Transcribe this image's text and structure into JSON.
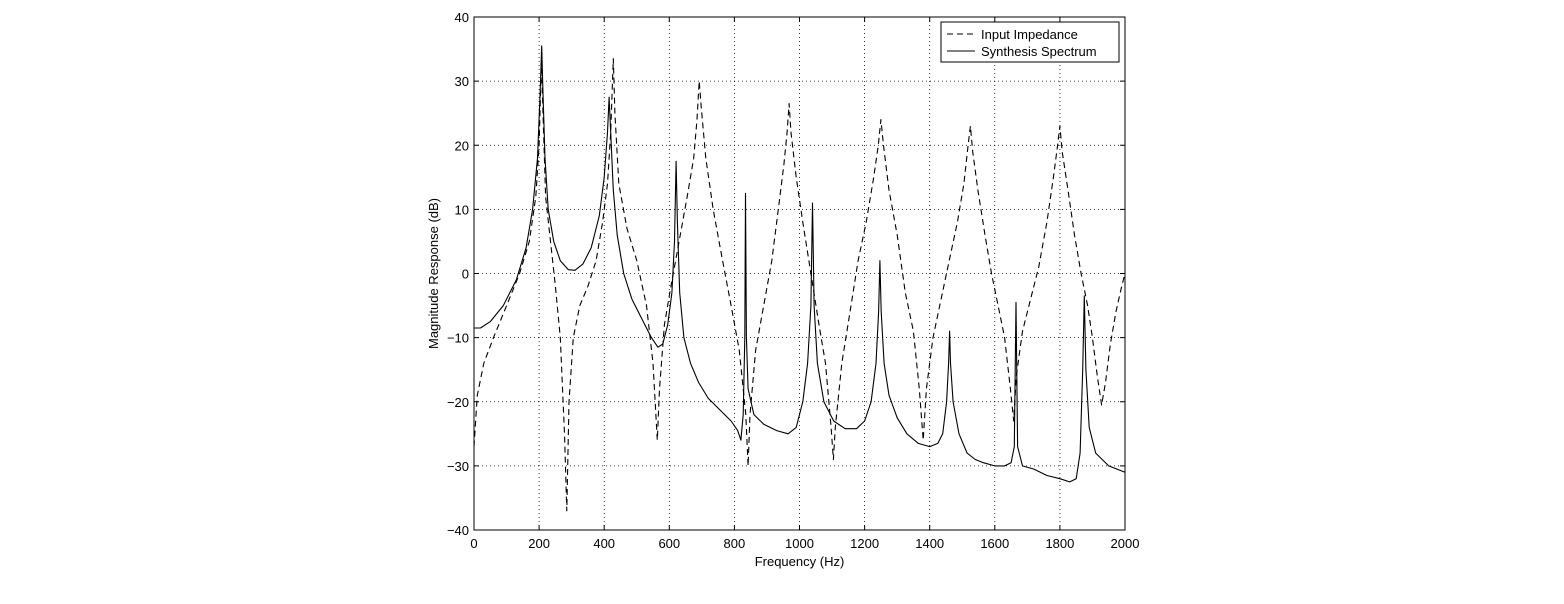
{
  "chart_data": {
    "type": "line",
    "title": "",
    "xlabel": "Frequency (Hz)",
    "ylabel": "Magnitude Response (dB)",
    "xlim": [
      0,
      2000
    ],
    "ylim": [
      -40,
      40
    ],
    "xticks": [
      0,
      200,
      400,
      600,
      800,
      1000,
      1200,
      1400,
      1600,
      1800,
      2000
    ],
    "yticks": [
      -40,
      -30,
      -20,
      -10,
      0,
      10,
      20,
      30,
      40
    ],
    "grid": true,
    "legend_position": "top-right",
    "series": [
      {
        "name": "Input Impedance",
        "style": "dashed",
        "color": "#000000",
        "points": [
          [
            0,
            -27
          ],
          [
            10,
            -19
          ],
          [
            30,
            -14
          ],
          [
            60,
            -10
          ],
          [
            100,
            -5
          ],
          [
            140,
            0
          ],
          [
            170,
            5
          ],
          [
            190,
            12
          ],
          [
            200,
            20
          ],
          [
            207,
            33
          ],
          [
            212,
            25
          ],
          [
            220,
            12
          ],
          [
            235,
            5
          ],
          [
            250,
            -2
          ],
          [
            265,
            -10
          ],
          [
            278,
            -25
          ],
          [
            285,
            -37
          ],
          [
            292,
            -20
          ],
          [
            305,
            -10
          ],
          [
            325,
            -5
          ],
          [
            350,
            -2
          ],
          [
            375,
            2
          ],
          [
            395,
            8
          ],
          [
            410,
            14
          ],
          [
            420,
            22
          ],
          [
            428,
            33.5
          ],
          [
            433,
            25
          ],
          [
            445,
            14
          ],
          [
            470,
            7
          ],
          [
            500,
            2
          ],
          [
            530,
            -5
          ],
          [
            550,
            -14
          ],
          [
            563,
            -26
          ],
          [
            570,
            -18
          ],
          [
            585,
            -8
          ],
          [
            605,
            -2
          ],
          [
            630,
            5
          ],
          [
            655,
            12
          ],
          [
            675,
            18
          ],
          [
            685,
            24
          ],
          [
            692,
            30
          ],
          [
            698,
            26
          ],
          [
            712,
            18
          ],
          [
            735,
            10
          ],
          [
            760,
            3
          ],
          [
            790,
            -5
          ],
          [
            815,
            -12
          ],
          [
            835,
            -22
          ],
          [
            842,
            -30
          ],
          [
            848,
            -22
          ],
          [
            865,
            -12
          ],
          [
            890,
            -5
          ],
          [
            915,
            2
          ],
          [
            935,
            10
          ],
          [
            952,
            17
          ],
          [
            962,
            22
          ],
          [
            968,
            26.5
          ],
          [
            974,
            22
          ],
          [
            990,
            15
          ],
          [
            1010,
            8
          ],
          [
            1035,
            0
          ],
          [
            1060,
            -8
          ],
          [
            1080,
            -14
          ],
          [
            1097,
            -24
          ],
          [
            1104,
            -29
          ],
          [
            1110,
            -24
          ],
          [
            1130,
            -14
          ],
          [
            1155,
            -6
          ],
          [
            1180,
            2
          ],
          [
            1205,
            8
          ],
          [
            1228,
            15
          ],
          [
            1242,
            20
          ],
          [
            1250,
            24
          ],
          [
            1258,
            20
          ],
          [
            1275,
            13
          ],
          [
            1300,
            6
          ],
          [
            1325,
            -3
          ],
          [
            1350,
            -9
          ],
          [
            1368,
            -18
          ],
          [
            1380,
            -26
          ],
          [
            1390,
            -18
          ],
          [
            1410,
            -10
          ],
          [
            1435,
            -4
          ],
          [
            1460,
            2
          ],
          [
            1485,
            8
          ],
          [
            1505,
            14
          ],
          [
            1518,
            20
          ],
          [
            1525,
            23
          ],
          [
            1532,
            19
          ],
          [
            1548,
            13
          ],
          [
            1570,
            6
          ],
          [
            1590,
            0
          ],
          [
            1610,
            -5
          ],
          [
            1630,
            -10
          ],
          [
            1648,
            -18
          ],
          [
            1658,
            -23
          ],
          [
            1666,
            -16
          ],
          [
            1685,
            -9
          ],
          [
            1710,
            -4
          ],
          [
            1735,
            1
          ],
          [
            1760,
            8
          ],
          [
            1780,
            15
          ],
          [
            1793,
            20
          ],
          [
            1800,
            23
          ],
          [
            1807,
            19
          ],
          [
            1825,
            13
          ],
          [
            1845,
            6
          ],
          [
            1865,
            0
          ],
          [
            1885,
            -5
          ],
          [
            1900,
            -10
          ],
          [
            1915,
            -16
          ],
          [
            1928,
            -20.5
          ],
          [
            1940,
            -17
          ],
          [
            1955,
            -11
          ],
          [
            1972,
            -6
          ],
          [
            1990,
            -2
          ],
          [
            2000,
            0
          ]
        ]
      },
      {
        "name": "Synthesis Spectrum",
        "style": "solid",
        "color": "#000000",
        "points": [
          [
            0,
            -8.5
          ],
          [
            20,
            -8.5
          ],
          [
            50,
            -7.5
          ],
          [
            90,
            -5
          ],
          [
            130,
            -1
          ],
          [
            160,
            4
          ],
          [
            180,
            10
          ],
          [
            195,
            18
          ],
          [
            203,
            28
          ],
          [
            208,
            35.5
          ],
          [
            212,
            28
          ],
          [
            218,
            18
          ],
          [
            228,
            10
          ],
          [
            245,
            5
          ],
          [
            265,
            2
          ],
          [
            290,
            0.6
          ],
          [
            310,
            0.5
          ],
          [
            335,
            1.5
          ],
          [
            360,
            4
          ],
          [
            385,
            9
          ],
          [
            400,
            15
          ],
          [
            410,
            22
          ],
          [
            415,
            27.5
          ],
          [
            420,
            22
          ],
          [
            428,
            13
          ],
          [
            440,
            6
          ],
          [
            460,
            0
          ],
          [
            485,
            -4
          ],
          [
            515,
            -7
          ],
          [
            545,
            -10
          ],
          [
            565,
            -11.5
          ],
          [
            580,
            -11
          ],
          [
            595,
            -8
          ],
          [
            608,
            -3
          ],
          [
            616,
            5
          ],
          [
            621,
            17.5
          ],
          [
            625,
            8
          ],
          [
            632,
            -3
          ],
          [
            645,
            -10
          ],
          [
            665,
            -14
          ],
          [
            690,
            -17
          ],
          [
            720,
            -19.5
          ],
          [
            760,
            -21.5
          ],
          [
            790,
            -23
          ],
          [
            810,
            -24.5
          ],
          [
            820,
            -26
          ],
          [
            827,
            -22
          ],
          [
            832,
            -10
          ],
          [
            834,
            12.5
          ],
          [
            837,
            -10
          ],
          [
            842,
            -18
          ],
          [
            860,
            -22
          ],
          [
            890,
            -23.5
          ],
          [
            930,
            -24.5
          ],
          [
            965,
            -25
          ],
          [
            990,
            -24
          ],
          [
            1010,
            -20
          ],
          [
            1025,
            -14
          ],
          [
            1035,
            -5
          ],
          [
            1040,
            11
          ],
          [
            1045,
            -5
          ],
          [
            1055,
            -14
          ],
          [
            1075,
            -20
          ],
          [
            1105,
            -23
          ],
          [
            1140,
            -24.2
          ],
          [
            1175,
            -24.2
          ],
          [
            1200,
            -23
          ],
          [
            1220,
            -20
          ],
          [
            1235,
            -14
          ],
          [
            1243,
            -6
          ],
          [
            1247,
            2
          ],
          [
            1251,
            -6
          ],
          [
            1260,
            -14
          ],
          [
            1275,
            -19
          ],
          [
            1300,
            -22.5
          ],
          [
            1330,
            -25
          ],
          [
            1365,
            -26.5
          ],
          [
            1400,
            -27
          ],
          [
            1425,
            -26.5
          ],
          [
            1440,
            -25
          ],
          [
            1452,
            -20
          ],
          [
            1458,
            -14
          ],
          [
            1461,
            -9
          ],
          [
            1464,
            -14
          ],
          [
            1472,
            -20
          ],
          [
            1490,
            -25
          ],
          [
            1515,
            -28
          ],
          [
            1540,
            -29
          ],
          [
            1565,
            -29.5
          ],
          [
            1600,
            -30
          ],
          [
            1630,
            -30
          ],
          [
            1650,
            -29.5
          ],
          [
            1660,
            -27
          ],
          [
            1665,
            -4.5
          ],
          [
            1670,
            -27
          ],
          [
            1685,
            -30
          ],
          [
            1720,
            -30.5
          ],
          [
            1760,
            -31.5
          ],
          [
            1800,
            -32
          ],
          [
            1830,
            -32.5
          ],
          [
            1850,
            -32
          ],
          [
            1862,
            -28
          ],
          [
            1870,
            -15
          ],
          [
            1875,
            -3.5
          ],
          [
            1880,
            -15
          ],
          [
            1890,
            -24
          ],
          [
            1910,
            -28
          ],
          [
            1950,
            -30
          ],
          [
            2000,
            -31
          ]
        ]
      }
    ]
  }
}
